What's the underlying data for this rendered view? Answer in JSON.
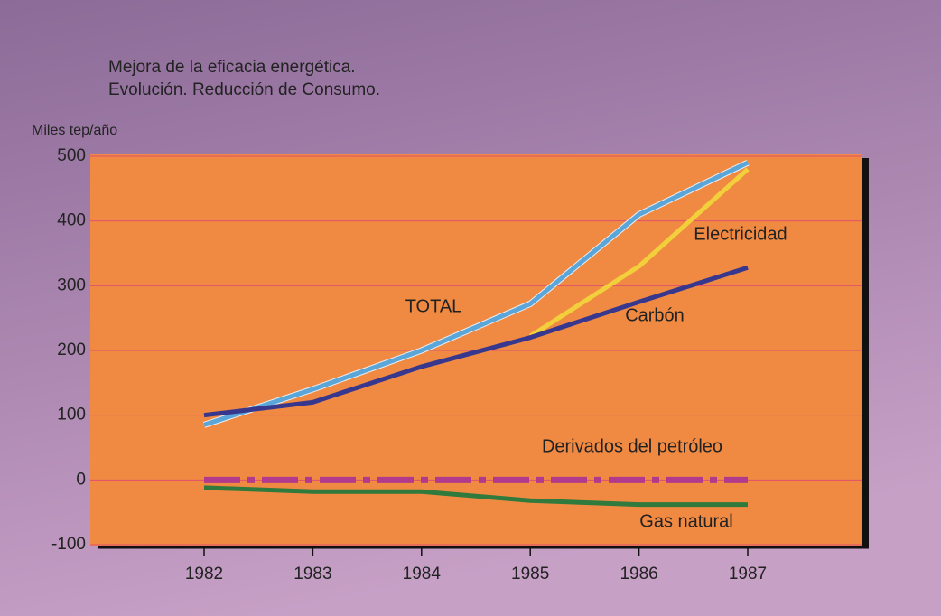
{
  "chart_data": {
    "type": "line",
    "title": [
      "Mejora de la eficacia energética.",
      "Evolución. Reducción de Consumo."
    ],
    "y_label": "Miles tep/año",
    "categories": [
      "1982",
      "1983",
      "1984",
      "1985",
      "1986",
      "1987"
    ],
    "series": [
      {
        "name": "TOTAL",
        "color": "#5aa6d8",
        "values": [
          85,
          140,
          200,
          272,
          410,
          490
        ]
      },
      {
        "name": "Electricidad",
        "color": "#f2d03c",
        "values": [
          null,
          null,
          null,
          222,
          330,
          480
        ]
      },
      {
        "name": "Carbón",
        "color": "#38378e",
        "values": [
          100,
          120,
          175,
          220,
          275,
          328
        ]
      },
      {
        "name": "Derivados del petróleo",
        "color": "#b23a8c",
        "dash": true,
        "values": [
          0,
          0,
          0,
          0,
          0,
          0
        ]
      },
      {
        "name": "Gas natural",
        "color": "#2f7a3c",
        "values": [
          -12,
          -18,
          -18,
          -32,
          -38,
          -38
        ]
      }
    ],
    "ylim": [
      -100,
      500
    ],
    "yticks": [
      -100,
      0,
      100,
      200,
      300,
      400,
      500
    ],
    "grid": true
  }
}
